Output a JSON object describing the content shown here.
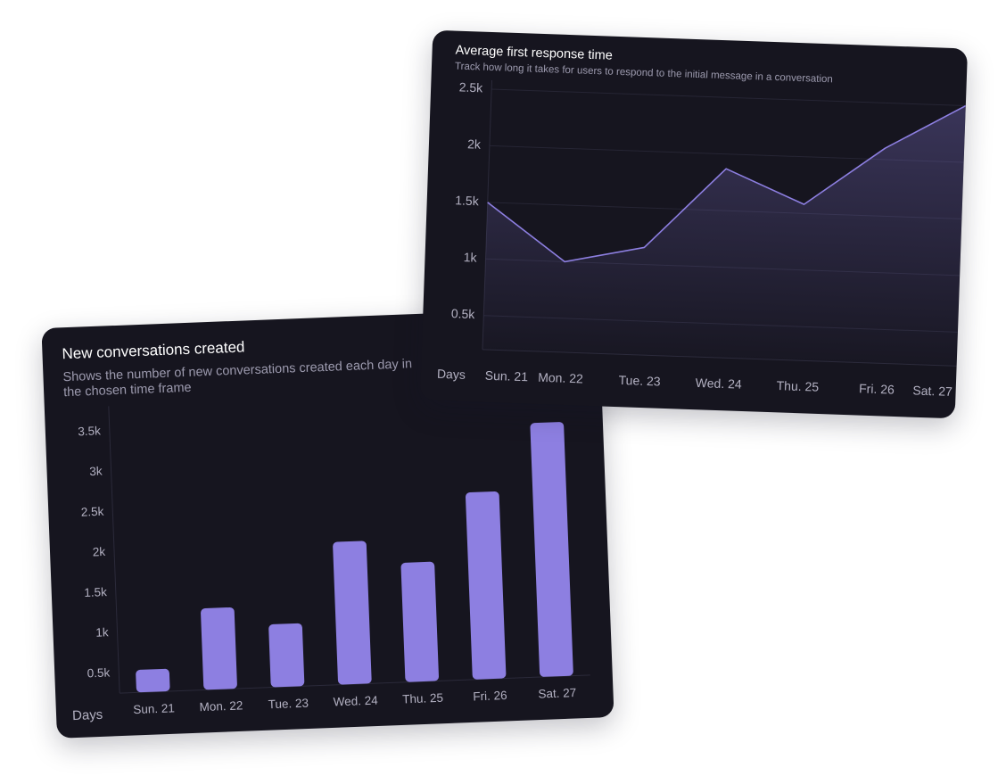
{
  "chart_data": [
    {
      "type": "bar",
      "title": "New conversations created",
      "subtitle": "Shows the number of new conversations created each day in the chosen time frame",
      "x_label": "Days",
      "categories": [
        "Sun. 21",
        "Mon. 22",
        "Tue. 23",
        "Wed. 24",
        "Thu. 25",
        "Fri. 26",
        "Sat. 27"
      ],
      "values": [
        530,
        1260,
        1030,
        2020,
        1730,
        2570,
        3400
      ],
      "color": "#8d7fe1",
      "ylim": [
        250,
        3700
      ],
      "yticks": [
        {
          "value": 500,
          "label": "0.5k"
        },
        {
          "value": 1000,
          "label": "1k"
        },
        {
          "value": 1500,
          "label": "1.5k"
        },
        {
          "value": 2000,
          "label": "2k"
        },
        {
          "value": 2500,
          "label": "2.5k"
        },
        {
          "value": 3000,
          "label": "3k"
        },
        {
          "value": 3500,
          "label": "3.5k"
        }
      ],
      "grid": false
    },
    {
      "type": "line",
      "title": "Average first response time",
      "subtitle": "Track how long it takes for users to respond to the initial message in a conversation",
      "x_label": "Days",
      "categories": [
        "Sun. 21",
        "Mon. 22",
        "Tue. 23",
        "Wed. 24",
        "Thu. 25",
        "Fri. 26",
        "Sat. 27"
      ],
      "values": [
        1500,
        1000,
        1150,
        1870,
        1580,
        2100,
        2500
      ],
      "color": "#8d7fe1",
      "ylim": [
        200,
        2500
      ],
      "yticks": [
        {
          "value": 500,
          "label": "0.5k"
        },
        {
          "value": 1000,
          "label": "1k"
        },
        {
          "value": 1500,
          "label": "1.5k"
        },
        {
          "value": 2000,
          "label": "2k"
        },
        {
          "value": 2500,
          "label": "2.5k"
        }
      ],
      "grid": true
    }
  ]
}
